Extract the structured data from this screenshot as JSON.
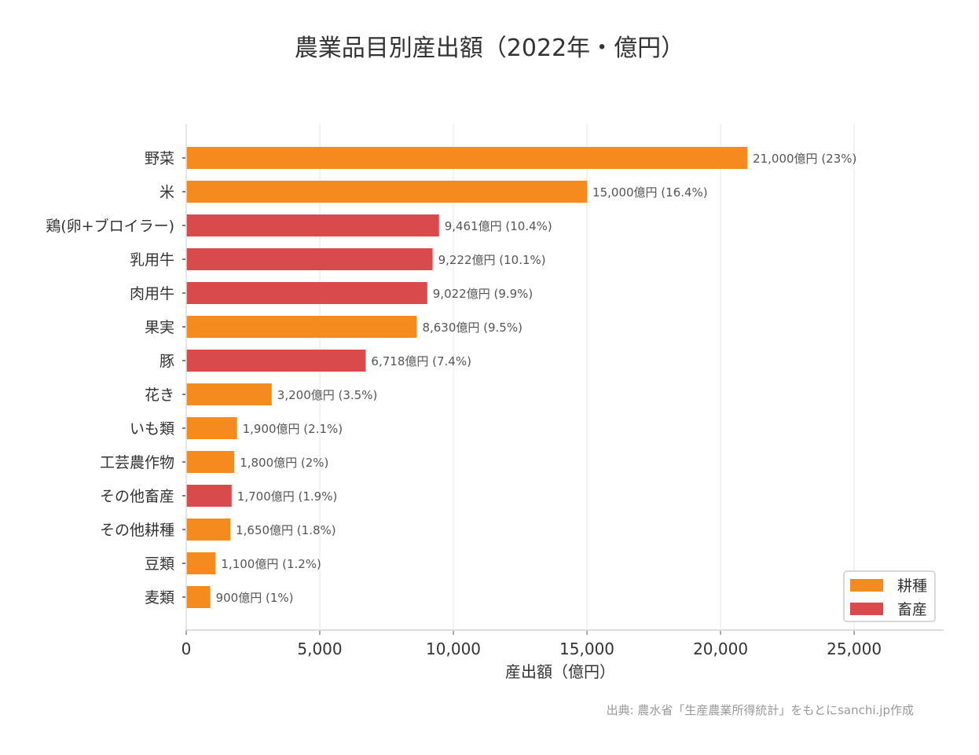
{
  "chart_data": {
    "type": "bar",
    "orientation": "horizontal",
    "title": "農業品目別産出額（2022年・億円）",
    "xlabel": "産出額（億円）",
    "ylabel": "",
    "xlim": [
      0,
      28350
    ],
    "xticks": [
      0,
      5000,
      10000,
      15000,
      20000,
      25000
    ],
    "xtick_labels": [
      "0",
      "5,000",
      "10,000",
      "15,000",
      "20,000",
      "25,000"
    ],
    "grid": "vertical",
    "legend_position": "bottom-right",
    "legend": [
      {
        "name": "耕種",
        "color": "#f58b1f"
      },
      {
        "name": "畜産",
        "color": "#d94a4d"
      }
    ],
    "categories": [
      "野菜",
      "米",
      "鶏(卵+ブロイラー)",
      "乳用牛",
      "肉用牛",
      "果実",
      "豚",
      "花き",
      "いも類",
      "工芸農作物",
      "その他畜産",
      "その他耕種",
      "豆類",
      "麦類"
    ],
    "values": [
      21000,
      15000,
      9461,
      9222,
      9022,
      8630,
      6718,
      3200,
      1900,
      1800,
      1700,
      1650,
      1100,
      900
    ],
    "groups": [
      "耕種",
      "耕種",
      "畜産",
      "畜産",
      "畜産",
      "耕種",
      "畜産",
      "耕種",
      "耕種",
      "耕種",
      "畜産",
      "耕種",
      "耕種",
      "耕種"
    ],
    "data_labels": [
      "21,000億円 (23%)",
      "15,000億円 (16.4%)",
      "9,461億円 (10.4%)",
      "9,222億円 (10.1%)",
      "9,022億円 (9.9%)",
      "8,630億円 (9.5%)",
      "6,718億円 (7.4%)",
      "3,200億円 (3.5%)",
      "1,900億円 (2.1%)",
      "1,800億円 (2%)",
      "1,700億円 (1.9%)",
      "1,650億円 (1.8%)",
      "1,100億円 (1.2%)",
      "900億円 (1%)"
    ],
    "source": "出典: 農水省「生産農業所得統計」をもとにsanchi.jp作成"
  }
}
